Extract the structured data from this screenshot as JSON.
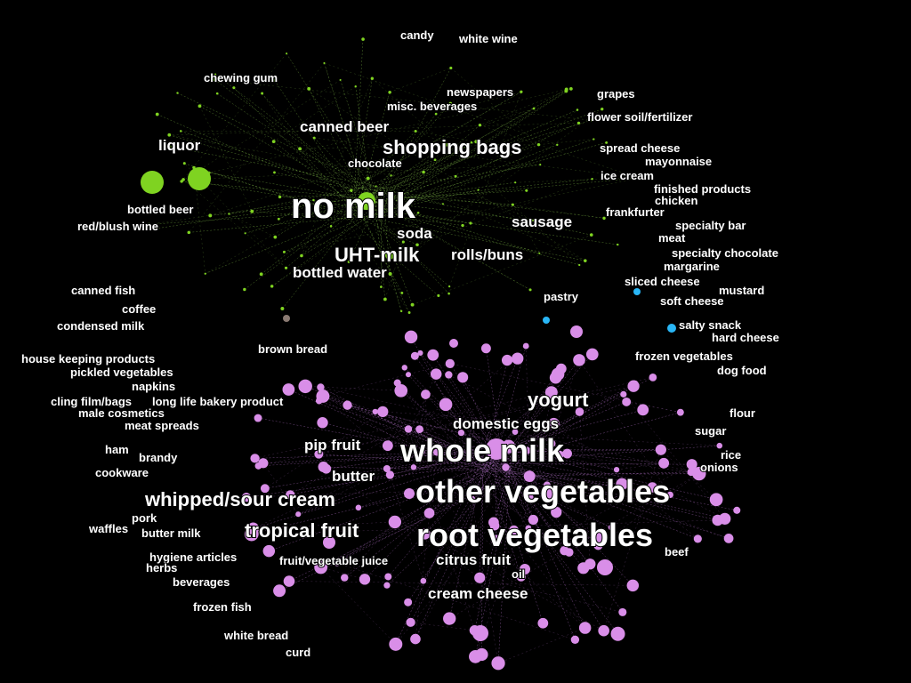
{
  "colors": {
    "background": "#000000",
    "cluster_green": "#7fd321",
    "cluster_purple": "#d98ee8",
    "cluster_blue": "#29b6f6",
    "edge_green": "#8fd14f",
    "edge_purple": "#c77fe0",
    "label": "#ffffff"
  },
  "labels": [
    {
      "text": "candy",
      "cluster": "green",
      "size": "s"
    },
    {
      "text": "white wine",
      "cluster": "green",
      "size": "s"
    },
    {
      "text": "chewing gum",
      "cluster": "green",
      "size": "s"
    },
    {
      "text": "newspapers",
      "cluster": "green",
      "size": "s"
    },
    {
      "text": "grapes",
      "cluster": "green",
      "size": "s"
    },
    {
      "text": "misc. beverages",
      "cluster": "green",
      "size": "s"
    },
    {
      "text": "flower soil/fertilizer",
      "cluster": "green",
      "size": "s"
    },
    {
      "text": "canned beer",
      "cluster": "green",
      "size": "m"
    },
    {
      "text": "liquor",
      "cluster": "green",
      "size": "m"
    },
    {
      "text": "shopping bags",
      "cluster": "green",
      "size": "l"
    },
    {
      "text": "spread cheese",
      "cluster": "green",
      "size": "s"
    },
    {
      "text": "chocolate",
      "cluster": "green",
      "size": "s"
    },
    {
      "text": "mayonnaise",
      "cluster": "green",
      "size": "s"
    },
    {
      "text": "ice cream",
      "cluster": "green",
      "size": "s"
    },
    {
      "text": "finished products",
      "cluster": "green",
      "size": "s"
    },
    {
      "text": "no milk",
      "cluster": "green",
      "size": "xxl"
    },
    {
      "text": "chicken",
      "cluster": "green",
      "size": "s"
    },
    {
      "text": "bottled beer",
      "cluster": "green",
      "size": "s"
    },
    {
      "text": "frankfurter",
      "cluster": "green",
      "size": "s"
    },
    {
      "text": "sausage",
      "cluster": "green",
      "size": "m"
    },
    {
      "text": "specialty bar",
      "cluster": "green",
      "size": "s"
    },
    {
      "text": "red/blush wine",
      "cluster": "green",
      "size": "s"
    },
    {
      "text": "soda",
      "cluster": "green",
      "size": "m"
    },
    {
      "text": "meat",
      "cluster": "green",
      "size": "s"
    },
    {
      "text": "UHT-milk",
      "cluster": "green",
      "size": "l"
    },
    {
      "text": "rolls/buns",
      "cluster": "green",
      "size": "m"
    },
    {
      "text": "specialty chocolate",
      "cluster": "green",
      "size": "s"
    },
    {
      "text": "margarine",
      "cluster": "green",
      "size": "s"
    },
    {
      "text": "bottled water",
      "cluster": "green",
      "size": "m"
    },
    {
      "text": "sliced cheese",
      "cluster": "blue",
      "size": "s"
    },
    {
      "text": "canned fish",
      "cluster": "green",
      "size": "s"
    },
    {
      "text": "mustard",
      "cluster": "green",
      "size": "s"
    },
    {
      "text": "pastry",
      "cluster": "blue",
      "size": "s"
    },
    {
      "text": "soft cheese",
      "cluster": "blue",
      "size": "s"
    },
    {
      "text": "coffee",
      "cluster": "green",
      "size": "s"
    },
    {
      "text": "condensed milk",
      "cluster": "green",
      "size": "s"
    },
    {
      "text": "salty snack",
      "cluster": "blue",
      "size": "s"
    },
    {
      "text": "hard cheese",
      "cluster": "purple",
      "size": "s"
    },
    {
      "text": "brown bread",
      "cluster": "green",
      "size": "s"
    },
    {
      "text": "frozen vegetables",
      "cluster": "purple",
      "size": "s"
    },
    {
      "text": "house keeping products",
      "cluster": "purple",
      "size": "s"
    },
    {
      "text": "dog food",
      "cluster": "purple",
      "size": "s"
    },
    {
      "text": "pickled vegetables",
      "cluster": "purple",
      "size": "s"
    },
    {
      "text": "napkins",
      "cluster": "purple",
      "size": "s"
    },
    {
      "text": "yogurt",
      "cluster": "purple",
      "size": "l"
    },
    {
      "text": "cling film/bags",
      "cluster": "purple",
      "size": "s"
    },
    {
      "text": "long life bakery product",
      "cluster": "purple",
      "size": "s"
    },
    {
      "text": "male cosmetics",
      "cluster": "purple",
      "size": "s"
    },
    {
      "text": "flour",
      "cluster": "purple",
      "size": "s"
    },
    {
      "text": "domestic eggs",
      "cluster": "purple",
      "size": "m"
    },
    {
      "text": "meat spreads",
      "cluster": "purple",
      "size": "s"
    },
    {
      "text": "sugar",
      "cluster": "purple",
      "size": "s"
    },
    {
      "text": "pip fruit",
      "cluster": "purple",
      "size": "m"
    },
    {
      "text": "whole milk",
      "cluster": "purple",
      "size": "xl"
    },
    {
      "text": "ham",
      "cluster": "purple",
      "size": "s"
    },
    {
      "text": "rice",
      "cluster": "purple",
      "size": "s"
    },
    {
      "text": "brandy",
      "cluster": "purple",
      "size": "s"
    },
    {
      "text": "onions",
      "cluster": "purple",
      "size": "s"
    },
    {
      "text": "butter",
      "cluster": "purple",
      "size": "m"
    },
    {
      "text": "cookware",
      "cluster": "purple",
      "size": "s"
    },
    {
      "text": "other vegetables",
      "cluster": "purple",
      "size": "xl"
    },
    {
      "text": "whipped/sour cream",
      "cluster": "purple",
      "size": "l"
    },
    {
      "text": "pork",
      "cluster": "purple",
      "size": "s"
    },
    {
      "text": "waffles",
      "cluster": "purple",
      "size": "s"
    },
    {
      "text": "tropical fruit",
      "cluster": "purple",
      "size": "l"
    },
    {
      "text": "butter milk",
      "cluster": "purple",
      "size": "s"
    },
    {
      "text": "root vegetables",
      "cluster": "purple",
      "size": "xl"
    },
    {
      "text": "beef",
      "cluster": "purple",
      "size": "s"
    },
    {
      "text": "hygiene articles",
      "cluster": "purple",
      "size": "s"
    },
    {
      "text": "herbs",
      "cluster": "purple",
      "size": "s"
    },
    {
      "text": "fruit/vegetable juice",
      "cluster": "purple",
      "size": "s"
    },
    {
      "text": "citrus fruit",
      "cluster": "purple",
      "size": "m"
    },
    {
      "text": "oil",
      "cluster": "purple",
      "size": "s"
    },
    {
      "text": "beverages",
      "cluster": "purple",
      "size": "s"
    },
    {
      "text": "cream cheese",
      "cluster": "purple",
      "size": "m"
    },
    {
      "text": "frozen fish",
      "cluster": "purple",
      "size": "s"
    },
    {
      "text": "white bread",
      "cluster": "purple",
      "size": "s"
    },
    {
      "text": "curd",
      "cluster": "purple",
      "size": "s"
    }
  ]
}
